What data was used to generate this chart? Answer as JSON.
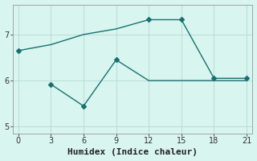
{
  "line1_x": [
    0,
    3,
    6,
    9,
    12,
    15,
    18,
    21
  ],
  "line1_y": [
    6.65,
    6.78,
    7.0,
    7.12,
    7.32,
    7.32,
    6.05,
    6.05
  ],
  "line1_markers": [
    0,
    4,
    5,
    6,
    7
  ],
  "line2_x": [
    3,
    6,
    9,
    12,
    15,
    18,
    21
  ],
  "line2_y": [
    5.92,
    5.45,
    6.45,
    6.0,
    6.0,
    6.0,
    6.0
  ],
  "line2_markers": [
    0,
    1,
    2
  ],
  "line_color": "#1a7070",
  "bg_color": "#d8f5f0",
  "grid_color": "#b8ddd8",
  "xlabel": "Humidex (Indice chaleur)",
  "xticks": [
    0,
    3,
    6,
    9,
    12,
    15,
    18,
    21
  ],
  "yticks": [
    5,
    6,
    7
  ],
  "xlim": [
    -0.5,
    21.5
  ],
  "ylim": [
    4.85,
    7.65
  ],
  "marker": "D",
  "markersize": 3,
  "linewidth": 1.0,
  "tick_labelsize": 7,
  "xlabel_fontsize": 8
}
